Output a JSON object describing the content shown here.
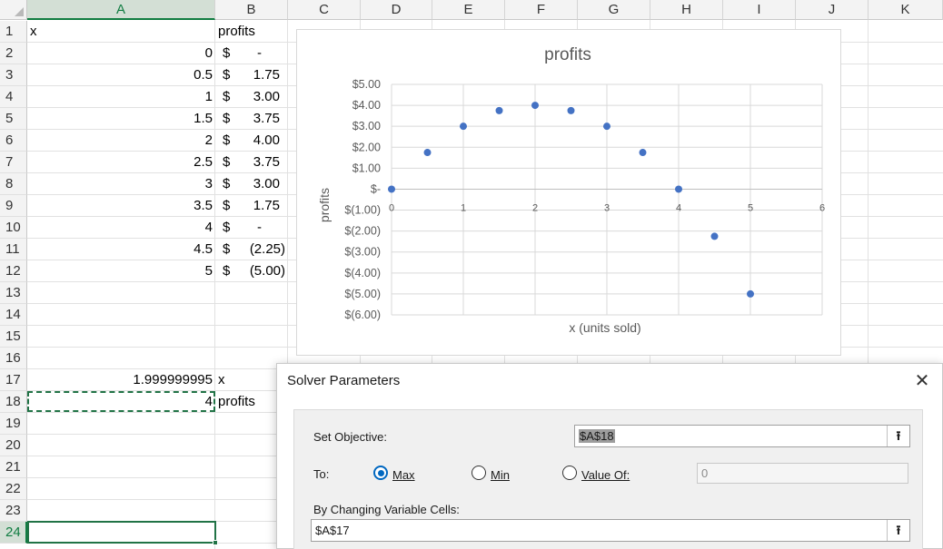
{
  "sheet": {
    "columns": [
      "A",
      "B",
      "C",
      "D",
      "E",
      "F",
      "G",
      "H",
      "I",
      "J",
      "K"
    ],
    "rows": [
      "1",
      "2",
      "3",
      "4",
      "5",
      "6",
      "7",
      "8",
      "9",
      "10",
      "11",
      "12",
      "13",
      "14",
      "15",
      "16",
      "17",
      "18",
      "19",
      "20",
      "21",
      "22",
      "23",
      "24"
    ],
    "header_x": "x",
    "header_profits": "profits",
    "currency_symbol": "$",
    "data": [
      {
        "x": "0",
        "profit": "-"
      },
      {
        "x": "0.5",
        "profit": "1.75"
      },
      {
        "x": "1",
        "profit": "3.00"
      },
      {
        "x": "1.5",
        "profit": "3.75"
      },
      {
        "x": "2",
        "profit": "4.00"
      },
      {
        "x": "2.5",
        "profit": "3.75"
      },
      {
        "x": "3",
        "profit": "3.00"
      },
      {
        "x": "3.5",
        "profit": "1.75"
      },
      {
        "x": "4",
        "profit": "-"
      },
      {
        "x": "4.5",
        "profit": "(2.25)"
      },
      {
        "x": "5",
        "profit": "(5.00)"
      }
    ],
    "a17_value": "1.999999995",
    "b17_label": "x",
    "a18_value": "4",
    "b18_label": "profits",
    "active_cell": "A24",
    "selected_column": "A",
    "selected_row": "24"
  },
  "chart_data": {
    "type": "scatter",
    "title": "profits",
    "xlabel": "x (units sold)",
    "ylabel": "profits",
    "xlim": [
      0,
      6
    ],
    "ylim": [
      -6,
      5
    ],
    "x_ticks": [
      "0",
      "1",
      "2",
      "3",
      "4",
      "5",
      "6"
    ],
    "y_ticks": [
      "$5.00",
      "$4.00",
      "$3.00",
      "$2.00",
      "$1.00",
      "$-",
      "$(1.00)",
      "$(2.00)",
      "$(3.00)",
      "$(4.00)",
      "$(5.00)",
      "$(6.00)"
    ],
    "grid": true,
    "marker_color": "#4472c4",
    "x": [
      0,
      0.5,
      1,
      1.5,
      2,
      2.5,
      3,
      3.5,
      4,
      4.5,
      5
    ],
    "y": [
      0,
      1.75,
      3.0,
      3.75,
      4.0,
      3.75,
      3.0,
      1.75,
      0,
      -2.25,
      -5.0
    ]
  },
  "solver": {
    "title": "Solver Parameters",
    "close_label": "✕",
    "set_objective_label": "Set Objective:",
    "objective_value": "$A$18",
    "to_label": "To:",
    "max_label": "Max",
    "min_label": "Min",
    "value_of_label": "Value Of:",
    "value_of_value": "0",
    "selected_option": "Max",
    "changing_cells_label": "By Changing Variable Cells:",
    "changing_cells_value": "$A$17",
    "ref_button_glyph": "⭱"
  },
  "colors": {
    "selection_green": "#217346",
    "marker_blue": "#4472c4",
    "radio_blue": "#0067c0"
  }
}
